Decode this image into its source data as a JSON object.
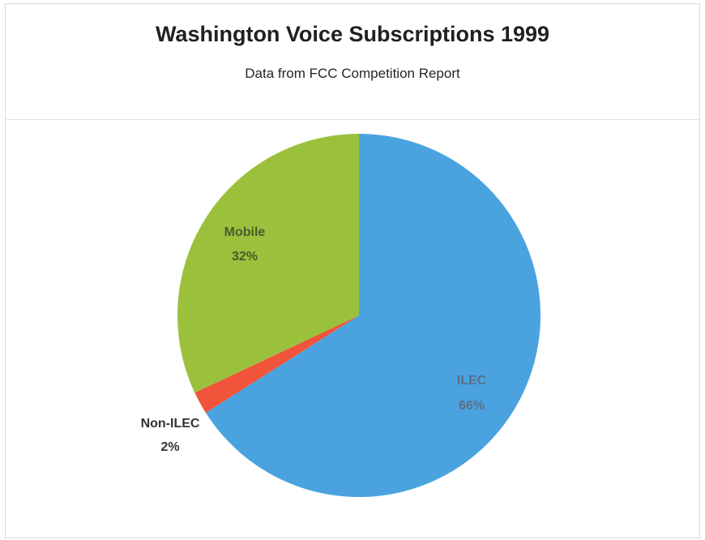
{
  "chart_data": {
    "type": "pie",
    "title": "Washington Voice Subscriptions 1999",
    "subtitle": "Data from FCC Competition Report",
    "slices": [
      {
        "label": "ILEC",
        "value": 66,
        "value_label": "66%",
        "color": "#4aa3df"
      },
      {
        "label": "Non-ILEC",
        "value": 2,
        "value_label": "2%",
        "color": "#f0553b"
      },
      {
        "label": "Mobile",
        "value": 32,
        "value_label": "32%",
        "color": "#9bc13c"
      }
    ]
  }
}
